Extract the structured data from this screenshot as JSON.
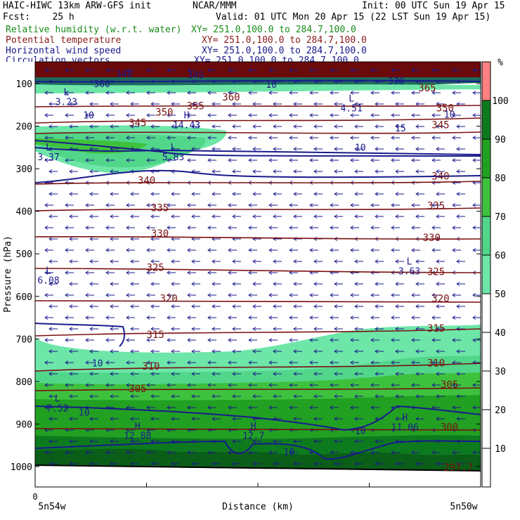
{
  "header": {
    "line1_left": "HAIC-HIWC 13km ARW-GFS init",
    "line1_mid": "NCAR/MMM",
    "line1_right": "Init: 00 UTC Sun 19 Apr 15",
    "line2_left": "Fcst:    25 h",
    "line2_right": "Valid: 01 UTC Mon 20 Apr 15 (22 LST Sun 19 Apr 15)",
    "fields": [
      {
        "name": "Relative humidity (w.r.t. water)",
        "xy": "XY= 251.0,100.0 to 284.7,100.0",
        "color": "#1a8c1a"
      },
      {
        "name": "Potential temperature",
        "xy": "XY= 251.0,100.0 to 284.7,100.0",
        "color": "#8b1a1a"
      },
      {
        "name": "Horizontal wind speed",
        "xy": "XY= 251.0,100.0 to 284.7,100.0",
        "color": "#1a1a8c"
      },
      {
        "name": "Circulation vectors",
        "xy": "XY= 251.0,100.0 to 284.7,100.0",
        "color": "#1a1a8c"
      }
    ]
  },
  "chart_data": {
    "type": "cross-section",
    "ylabel": "Pressure (hPa)",
    "xlabel": "Distance (km)",
    "y_ticks": [
      100,
      200,
      300,
      400,
      500,
      600,
      700,
      800,
      900,
      1000
    ],
    "ylim": [
      1050,
      50
    ],
    "x_ticks": [
      "0"
    ],
    "x_endpoints": [
      "5n54w",
      "5n50w"
    ],
    "colorbar": {
      "unit": "%",
      "levels": [
        10,
        20,
        30,
        40,
        50,
        60,
        70,
        80,
        90,
        100
      ],
      "bands": [
        {
          "from": 50,
          "to": 60,
          "color": "#6de6a8"
        },
        {
          "from": 60,
          "to": 70,
          "color": "#52d68a"
        },
        {
          "from": 70,
          "to": 80,
          "color": "#3ec23e"
        },
        {
          "from": 80,
          "to": 90,
          "color": "#22a022"
        },
        {
          "from": 90,
          "to": 100,
          "color": "#0e7a1e"
        },
        {
          "from": 100,
          "to": 110,
          "color": "#ff8080"
        }
      ]
    },
    "theta_labels": [
      {
        "v": "365",
        "x": 0.88,
        "p": 118
      },
      {
        "v": "360",
        "x": 0.44,
        "p": 140
      },
      {
        "v": "355",
        "x": 0.36,
        "p": 160
      },
      {
        "v": "350",
        "x": 0.29,
        "p": 175
      },
      {
        "v": "350",
        "x": 0.92,
        "p": 165
      },
      {
        "v": "345",
        "x": 0.23,
        "p": 200
      },
      {
        "v": "345",
        "x": 0.91,
        "p": 205
      },
      {
        "v": "340",
        "x": 0.25,
        "p": 335
      },
      {
        "v": "340",
        "x": 0.91,
        "p": 325
      },
      {
        "v": "335",
        "x": 0.28,
        "p": 400
      },
      {
        "v": "335",
        "x": 0.9,
        "p": 395
      },
      {
        "v": "330",
        "x": 0.28,
        "p": 460
      },
      {
        "v": "330",
        "x": 0.89,
        "p": 470
      },
      {
        "v": "325",
        "x": 0.27,
        "p": 540
      },
      {
        "v": "325",
        "x": 0.9,
        "p": 550
      },
      {
        "v": "320",
        "x": 0.3,
        "p": 613
      },
      {
        "v": "320",
        "x": 0.91,
        "p": 613
      },
      {
        "v": "315",
        "x": 0.27,
        "p": 698
      },
      {
        "v": "315",
        "x": 0.9,
        "p": 683
      },
      {
        "v": "310",
        "x": 0.26,
        "p": 772
      },
      {
        "v": "310",
        "x": 0.9,
        "p": 765
      },
      {
        "v": "305",
        "x": 0.23,
        "p": 825
      },
      {
        "v": "305",
        "x": 0.93,
        "p": 815
      },
      {
        "v": "300",
        "x": 0.93,
        "p": 915
      },
      {
        "v": "297.7",
        "x": 0.95,
        "p": 1010
      }
    ],
    "wind_labels": [
      {
        "v": "10",
        "x": 0.12,
        "p": 182
      },
      {
        "v": "10",
        "x": 0.53,
        "p": 110
      },
      {
        "v": "10",
        "x": 0.93,
        "p": 180
      },
      {
        "v": "10",
        "x": 0.73,
        "p": 258
      },
      {
        "v": "10",
        "x": 0.14,
        "p": 765
      },
      {
        "v": "10",
        "x": 0.11,
        "p": 880
      },
      {
        "v": "10",
        "x": 0.57,
        "p": 973
      },
      {
        "v": "10",
        "x": 0.73,
        "p": 924
      },
      {
        "v": "15",
        "x": 0.82,
        "p": 212
      },
      {
        "v": "370",
        "x": 0.81,
        "p": 102
      },
      {
        "v": "349",
        "x": 0.36,
        "p": 88
      },
      {
        "v": "340",
        "x": 0.2,
        "p": 85
      },
      {
        "v": "360",
        "x": 0.15,
        "p": 108
      }
    ],
    "extrema": [
      {
        "type": "L",
        "v": "3.23",
        "x": 0.07,
        "p": 150
      },
      {
        "type": "L",
        "v": "4.51",
        "x": 0.71,
        "p": 165
      },
      {
        "type": "H",
        "v": "14.43",
        "x": 0.34,
        "p": 205
      },
      {
        "type": "L",
        "v": "3.37",
        "x": 0.03,
        "p": 280
      },
      {
        "type": "L",
        "v": "5.83",
        "x": 0.31,
        "p": 280
      },
      {
        "type": "L",
        "v": "6.08",
        "x": 0.03,
        "p": 570
      },
      {
        "type": "L",
        "v": "3.63",
        "x": 0.84,
        "p": 548
      },
      {
        "type": "L",
        "v": "7.52",
        "x": 0.05,
        "p": 870
      },
      {
        "type": "H",
        "v": "12.88",
        "x": 0.23,
        "p": 935
      },
      {
        "type": "H",
        "v": "12.7",
        "x": 0.49,
        "p": 935
      },
      {
        "type": "H",
        "v": "11.06",
        "x": 0.83,
        "p": 915
      }
    ]
  }
}
